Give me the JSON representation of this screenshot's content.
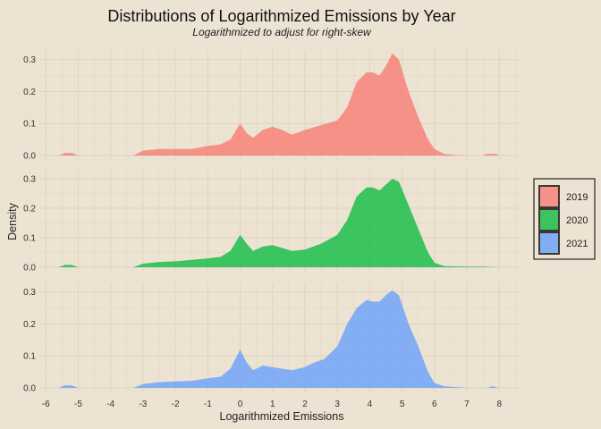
{
  "chart_data": {
    "type": "area",
    "title": "Distributions of Logarithmized Emissions by Year",
    "subtitle": "Logarithmized to adjust for right-skew",
    "xlabel": "Logarithmized Emissions",
    "ylabel": "Density",
    "xlim": [
      -6.2,
      8.6
    ],
    "ylim": [
      0,
      0.33
    ],
    "x_ticks": [
      -6,
      -5,
      -4,
      -3,
      -2,
      -1,
      0,
      1,
      2,
      3,
      4,
      5,
      6,
      7,
      8
    ],
    "y_ticks": [
      0.0,
      0.1,
      0.2,
      0.3
    ],
    "legend_position": "right",
    "series": [
      {
        "name": "2019",
        "color": "#f8766d",
        "x": [
          -5.6,
          -5.4,
          -5.2,
          -5.0,
          -3.3,
          -3.0,
          -2.5,
          -2.0,
          -1.5,
          -1.0,
          -0.6,
          -0.3,
          0.0,
          0.2,
          0.4,
          0.7,
          1.0,
          1.3,
          1.6,
          2.0,
          2.5,
          3.0,
          3.3,
          3.6,
          3.9,
          4.1,
          4.3,
          4.5,
          4.7,
          4.9,
          5.2,
          5.5,
          5.8,
          6.0,
          6.3,
          6.6,
          7.0,
          7.5,
          7.6,
          7.9,
          8.0
        ],
        "y": [
          0,
          0.008,
          0.008,
          0,
          0,
          0.015,
          0.02,
          0.02,
          0.02,
          0.03,
          0.035,
          0.05,
          0.1,
          0.07,
          0.055,
          0.08,
          0.09,
          0.08,
          0.065,
          0.08,
          0.095,
          0.11,
          0.15,
          0.23,
          0.26,
          0.26,
          0.25,
          0.28,
          0.32,
          0.3,
          0.2,
          0.12,
          0.05,
          0.02,
          0.005,
          0.002,
          0,
          0,
          0.005,
          0.005,
          0
        ]
      },
      {
        "name": "2020",
        "color": "#00ba38",
        "x": [
          -5.6,
          -5.4,
          -5.2,
          -5.0,
          -3.3,
          -3.0,
          -2.5,
          -2.0,
          -1.5,
          -1.0,
          -0.6,
          -0.3,
          0.0,
          0.2,
          0.4,
          0.7,
          1.0,
          1.3,
          1.6,
          2.0,
          2.5,
          3.0,
          3.3,
          3.6,
          3.9,
          4.1,
          4.3,
          4.5,
          4.7,
          4.9,
          5.2,
          5.5,
          5.8,
          6.0,
          6.3,
          6.6,
          7.0,
          7.5,
          8.0
        ],
        "y": [
          0,
          0.008,
          0.008,
          0,
          0,
          0.012,
          0.018,
          0.02,
          0.025,
          0.03,
          0.035,
          0.055,
          0.11,
          0.08,
          0.055,
          0.07,
          0.075,
          0.065,
          0.055,
          0.06,
          0.08,
          0.11,
          0.16,
          0.24,
          0.27,
          0.27,
          0.26,
          0.28,
          0.3,
          0.29,
          0.21,
          0.13,
          0.05,
          0.015,
          0.004,
          0.003,
          0.002,
          0.002,
          0
        ]
      },
      {
        "name": "2021",
        "color": "#619cff",
        "x": [
          -5.6,
          -5.4,
          -5.2,
          -5.0,
          -3.3,
          -3.0,
          -2.5,
          -2.0,
          -1.5,
          -1.0,
          -0.6,
          -0.3,
          0.0,
          0.2,
          0.4,
          0.7,
          1.0,
          1.3,
          1.6,
          2.0,
          2.3,
          2.6,
          3.0,
          3.3,
          3.6,
          3.9,
          4.1,
          4.3,
          4.5,
          4.7,
          4.9,
          5.2,
          5.5,
          5.8,
          6.0,
          6.3,
          6.6,
          7.0,
          7.6,
          7.8,
          8.0
        ],
        "y": [
          0,
          0.008,
          0.008,
          0,
          0,
          0.012,
          0.018,
          0.02,
          0.022,
          0.03,
          0.035,
          0.06,
          0.12,
          0.08,
          0.055,
          0.07,
          0.065,
          0.06,
          0.055,
          0.065,
          0.08,
          0.09,
          0.13,
          0.2,
          0.25,
          0.275,
          0.27,
          0.27,
          0.29,
          0.305,
          0.29,
          0.2,
          0.13,
          0.05,
          0.015,
          0.005,
          0.003,
          0,
          0,
          0.005,
          0
        ]
      }
    ]
  }
}
